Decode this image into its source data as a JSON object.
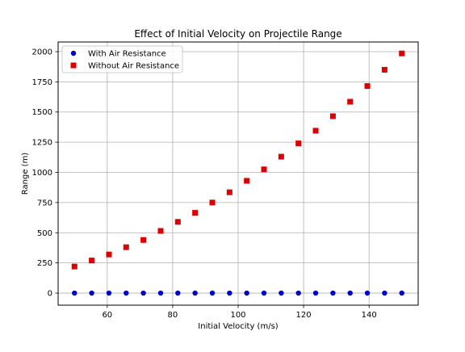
{
  "chart_data": {
    "type": "scatter",
    "title": "Effect of Initial Velocity on Projectile Range",
    "xlabel": "Initial Velocity (m/s)",
    "ylabel": "Range (m)",
    "xlim": [
      45,
      155
    ],
    "ylim": [
      -100,
      2080
    ],
    "xticks": [
      60,
      80,
      100,
      120,
      140
    ],
    "yticks": [
      0,
      250,
      500,
      750,
      1000,
      1250,
      1500,
      1750,
      2000
    ],
    "grid": true,
    "legend_position": "top-left",
    "x": [
      50,
      55.26,
      60.53,
      65.79,
      71.05,
      76.32,
      81.58,
      86.84,
      92.11,
      97.37,
      102.63,
      107.89,
      113.16,
      118.42,
      123.68,
      128.95,
      134.21,
      139.47,
      144.74,
      150
    ],
    "series": [
      {
        "name": "With Air Resistance",
        "marker": "circle",
        "color": "#0000cc",
        "values": [
          0,
          0,
          0,
          0,
          0,
          0,
          0,
          0,
          0,
          0,
          0,
          0,
          0,
          0,
          0,
          0,
          0,
          0,
          0,
          0
        ]
      },
      {
        "name": "Without Air Resistance",
        "marker": "square",
        "color": "#dd0000",
        "values": [
          220,
          270,
          320,
          380,
          440,
          515,
          590,
          665,
          750,
          835,
          930,
          1025,
          1130,
          1240,
          1345,
          1465,
          1585,
          1715,
          1850,
          1985
        ]
      }
    ]
  }
}
